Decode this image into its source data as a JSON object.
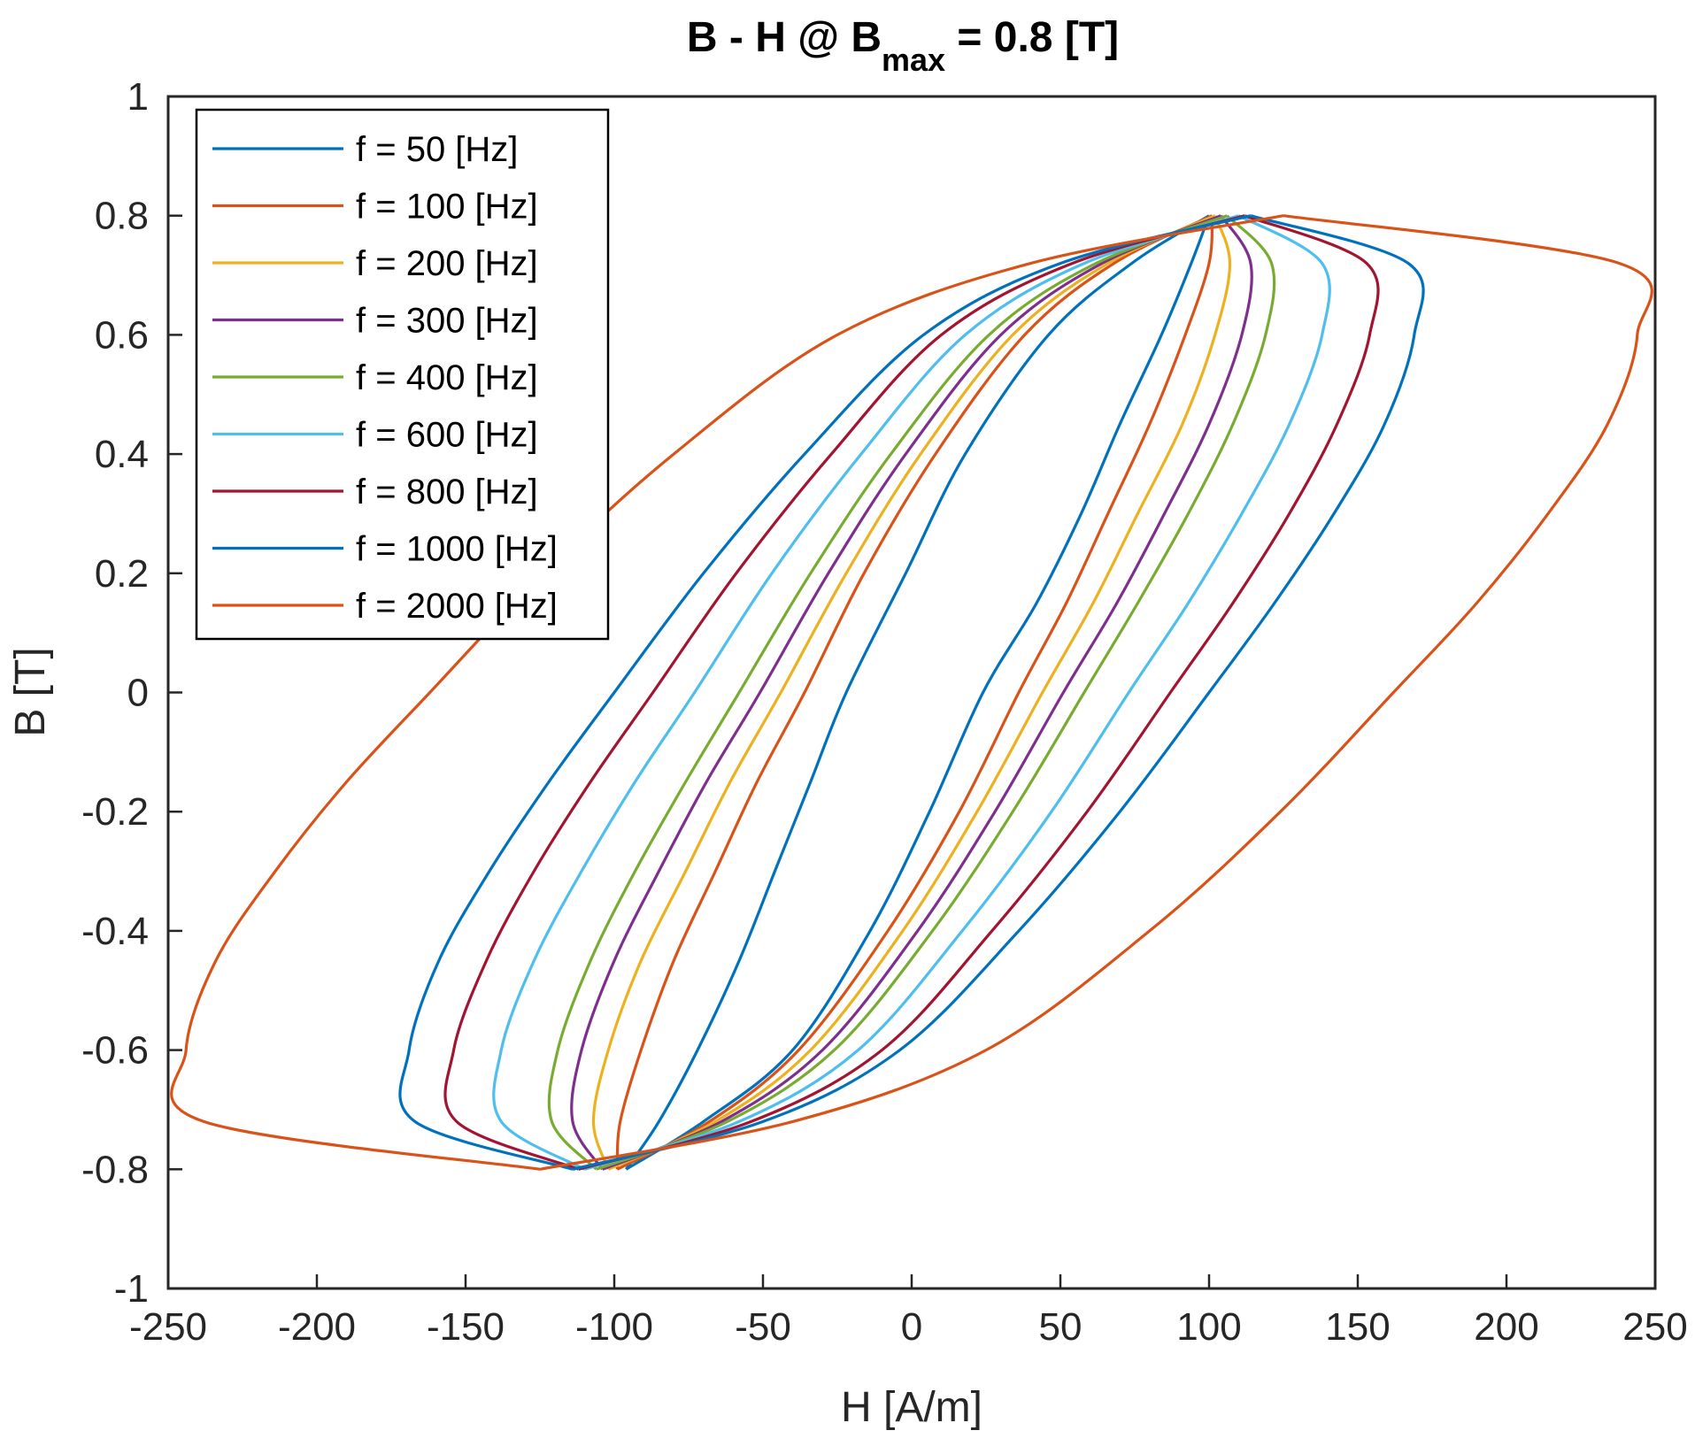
{
  "chart_data": {
    "type": "line",
    "title": {
      "prefix": "B - H @ B",
      "subscript": "max",
      "suffix": " = 0.8 [T]"
    },
    "xlabel": "H [A/m]",
    "ylabel": "B [T]",
    "xlim": [
      -250,
      250
    ],
    "ylim": [
      -1,
      1
    ],
    "xticks": [
      {
        "value": -250,
        "label": "-250"
      },
      {
        "value": -200,
        "label": "-200"
      },
      {
        "value": -150,
        "label": "-150"
      },
      {
        "value": -100,
        "label": "-100"
      },
      {
        "value": -50,
        "label": "-50"
      },
      {
        "value": 0,
        "label": "0"
      },
      {
        "value": 50,
        "label": "50"
      },
      {
        "value": 100,
        "label": "100"
      },
      {
        "value": 150,
        "label": "150"
      },
      {
        "value": 200,
        "label": "200"
      },
      {
        "value": 250,
        "label": "250"
      }
    ],
    "yticks": [
      {
        "value": -1,
        "label": "-1"
      },
      {
        "value": -0.8,
        "label": "-0.8"
      },
      {
        "value": -0.6,
        "label": "-0.6"
      },
      {
        "value": -0.4,
        "label": "-0.4"
      },
      {
        "value": -0.2,
        "label": "-0.2"
      },
      {
        "value": 0,
        "label": "0"
      },
      {
        "value": 0.2,
        "label": "0.2"
      },
      {
        "value": 0.4,
        "label": "0.4"
      },
      {
        "value": 0.6,
        "label": "0.6"
      },
      {
        "value": 0.8,
        "label": "0.8"
      },
      {
        "value": 1,
        "label": "1"
      }
    ],
    "grid": false,
    "legend_position": "top-left",
    "series": [
      {
        "name": "f = 50 [Hz]",
        "color": "#0072BD",
        "ascending": [
          [
            -96,
            -0.8
          ],
          [
            -85,
            -0.72
          ],
          [
            -72,
            -0.6
          ],
          [
            -58,
            -0.45
          ],
          [
            -46,
            -0.3
          ],
          [
            -34,
            -0.15
          ],
          [
            -22,
            0.0
          ],
          [
            -2,
            0.2
          ],
          [
            18,
            0.4
          ],
          [
            46,
            0.6
          ],
          [
            74,
            0.72
          ],
          [
            100,
            0.8
          ]
        ],
        "descending": [
          [
            100,
            0.8
          ],
          [
            94,
            0.72
          ],
          [
            84,
            0.6
          ],
          [
            70,
            0.45
          ],
          [
            57,
            0.3
          ],
          [
            42,
            0.15
          ],
          [
            24,
            0.0
          ],
          [
            6,
            -0.2
          ],
          [
            -14,
            -0.4
          ],
          [
            -40,
            -0.6
          ],
          [
            -70,
            -0.72
          ],
          [
            -96,
            -0.8
          ]
        ]
      },
      {
        "name": "f = 100 [Hz]",
        "color": "#D95319",
        "ascending": [
          [
            -99,
            -0.8
          ],
          [
            -98,
            -0.72
          ],
          [
            -91,
            -0.6
          ],
          [
            -80,
            -0.45
          ],
          [
            -66,
            -0.3
          ],
          [
            -52,
            -0.15
          ],
          [
            -36,
            0.0
          ],
          [
            -16,
            0.2
          ],
          [
            8,
            0.4
          ],
          [
            38,
            0.6
          ],
          [
            68,
            0.72
          ],
          [
            101,
            0.8
          ]
        ],
        "descending": [
          [
            101,
            0.8
          ],
          [
            100,
            0.72
          ],
          [
            92,
            0.6
          ],
          [
            80,
            0.45
          ],
          [
            66,
            0.3
          ],
          [
            52,
            0.15
          ],
          [
            36,
            0.0
          ],
          [
            16,
            -0.2
          ],
          [
            -8,
            -0.4
          ],
          [
            -38,
            -0.6
          ],
          [
            -68,
            -0.72
          ],
          [
            -99,
            -0.8
          ]
        ]
      },
      {
        "name": "f = 200 [Hz]",
        "color": "#EDB120",
        "ascending": [
          [
            -102,
            -0.8
          ],
          [
            -107,
            -0.72
          ],
          [
            -102,
            -0.6
          ],
          [
            -91,
            -0.45
          ],
          [
            -76,
            -0.3
          ],
          [
            -61,
            -0.15
          ],
          [
            -44,
            0.0
          ],
          [
            -22,
            0.2
          ],
          [
            3,
            0.4
          ],
          [
            34,
            0.6
          ],
          [
            66,
            0.72
          ],
          [
            102,
            0.8
          ]
        ],
        "descending": [
          [
            102,
            0.8
          ],
          [
            107,
            0.72
          ],
          [
            102,
            0.6
          ],
          [
            91,
            0.45
          ],
          [
            76,
            0.3
          ],
          [
            61,
            0.15
          ],
          [
            44,
            0.0
          ],
          [
            22,
            -0.2
          ],
          [
            -3,
            -0.4
          ],
          [
            -34,
            -0.6
          ],
          [
            -66,
            -0.72
          ],
          [
            -102,
            -0.8
          ]
        ]
      },
      {
        "name": "f = 300 [Hz]",
        "color": "#7E2F8E",
        "ascending": [
          [
            -104,
            -0.8
          ],
          [
            -114,
            -0.72
          ],
          [
            -111,
            -0.6
          ],
          [
            -100,
            -0.45
          ],
          [
            -85,
            -0.3
          ],
          [
            -69,
            -0.15
          ],
          [
            -51,
            0.0
          ],
          [
            -28,
            0.2
          ],
          [
            -2,
            0.4
          ],
          [
            30,
            0.6
          ],
          [
            64,
            0.72
          ],
          [
            104,
            0.8
          ]
        ],
        "descending": [
          [
            104,
            0.8
          ],
          [
            114,
            0.72
          ],
          [
            111,
            0.6
          ],
          [
            100,
            0.45
          ],
          [
            85,
            0.3
          ],
          [
            69,
            0.15
          ],
          [
            51,
            0.0
          ],
          [
            28,
            -0.2
          ],
          [
            2,
            -0.4
          ],
          [
            -30,
            -0.6
          ],
          [
            -64,
            -0.72
          ],
          [
            -104,
            -0.8
          ]
        ]
      },
      {
        "name": "f = 400 [Hz]",
        "color": "#77AC30",
        "ascending": [
          [
            -106,
            -0.8
          ],
          [
            -121,
            -0.72
          ],
          [
            -119,
            -0.6
          ],
          [
            -108,
            -0.45
          ],
          [
            -93,
            -0.3
          ],
          [
            -76,
            -0.15
          ],
          [
            -58,
            0.0
          ],
          [
            -34,
            0.2
          ],
          [
            -7,
            0.4
          ],
          [
            26,
            0.6
          ],
          [
            62,
            0.72
          ],
          [
            106,
            0.8
          ]
        ],
        "descending": [
          [
            106,
            0.8
          ],
          [
            121,
            0.72
          ],
          [
            119,
            0.6
          ],
          [
            108,
            0.45
          ],
          [
            93,
            0.3
          ],
          [
            76,
            0.15
          ],
          [
            58,
            0.0
          ],
          [
            34,
            -0.2
          ],
          [
            7,
            -0.4
          ],
          [
            -26,
            -0.6
          ],
          [
            -62,
            -0.72
          ],
          [
            -106,
            -0.8
          ]
        ]
      },
      {
        "name": "f = 600 [Hz]",
        "color": "#4DBEEE",
        "ascending": [
          [
            -110,
            -0.8
          ],
          [
            -138,
            -0.72
          ],
          [
            -138,
            -0.6
          ],
          [
            -127,
            -0.45
          ],
          [
            -111,
            -0.3
          ],
          [
            -93,
            -0.15
          ],
          [
            -73,
            0.0
          ],
          [
            -47,
            0.2
          ],
          [
            -17,
            0.4
          ],
          [
            18,
            0.6
          ],
          [
            58,
            0.72
          ],
          [
            110,
            0.8
          ]
        ],
        "descending": [
          [
            110,
            0.8
          ],
          [
            138,
            0.72
          ],
          [
            138,
            0.6
          ],
          [
            127,
            0.45
          ],
          [
            111,
            0.3
          ],
          [
            93,
            0.15
          ],
          [
            73,
            0.0
          ],
          [
            47,
            -0.2
          ],
          [
            17,
            -0.4
          ],
          [
            -18,
            -0.6
          ],
          [
            -58,
            -0.72
          ],
          [
            -110,
            -0.8
          ]
        ]
      },
      {
        "name": "f = 800 [Hz]",
        "color": "#A2142F",
        "ascending": [
          [
            -112,
            -0.8
          ],
          [
            -153,
            -0.72
          ],
          [
            -154,
            -0.6
          ],
          [
            -143,
            -0.45
          ],
          [
            -127,
            -0.3
          ],
          [
            -108,
            -0.15
          ],
          [
            -87,
            0.0
          ],
          [
            -59,
            0.2
          ],
          [
            -27,
            0.4
          ],
          [
            10,
            0.6
          ],
          [
            54,
            0.72
          ],
          [
            112,
            0.8
          ]
        ],
        "descending": [
          [
            112,
            0.8
          ],
          [
            153,
            0.72
          ],
          [
            154,
            0.6
          ],
          [
            143,
            0.45
          ],
          [
            127,
            0.3
          ],
          [
            108,
            0.15
          ],
          [
            87,
            0.0
          ],
          [
            59,
            -0.2
          ],
          [
            27,
            -0.4
          ],
          [
            -10,
            -0.6
          ],
          [
            -54,
            -0.72
          ],
          [
            -112,
            -0.8
          ]
        ]
      },
      {
        "name": "f = 1000 [Hz]",
        "color": "#0072BD",
        "ascending": [
          [
            -114,
            -0.8
          ],
          [
            -167,
            -0.72
          ],
          [
            -169,
            -0.6
          ],
          [
            -159,
            -0.45
          ],
          [
            -142,
            -0.3
          ],
          [
            -122,
            -0.15
          ],
          [
            -100,
            0.0
          ],
          [
            -70,
            0.2
          ],
          [
            -36,
            0.4
          ],
          [
            4,
            0.6
          ],
          [
            50,
            0.72
          ],
          [
            114,
            0.8
          ]
        ],
        "descending": [
          [
            114,
            0.8
          ],
          [
            167,
            0.72
          ],
          [
            169,
            0.6
          ],
          [
            159,
            0.45
          ],
          [
            142,
            0.3
          ],
          [
            122,
            0.15
          ],
          [
            100,
            0.0
          ],
          [
            70,
            -0.2
          ],
          [
            36,
            -0.4
          ],
          [
            -4,
            -0.6
          ],
          [
            -50,
            -0.72
          ],
          [
            -114,
            -0.8
          ]
        ]
      },
      {
        "name": "f = 2000 [Hz]",
        "color": "#D95319",
        "ascending": [
          [
            -125,
            -0.8
          ],
          [
            -238,
            -0.72
          ],
          [
            -244,
            -0.6
          ],
          [
            -234,
            -0.45
          ],
          [
            -214,
            -0.3
          ],
          [
            -190,
            -0.15
          ],
          [
            -162,
            0.0
          ],
          [
            -124,
            0.2
          ],
          [
            -80,
            0.4
          ],
          [
            -25,
            0.6
          ],
          [
            40,
            0.72
          ],
          [
            125,
            0.8
          ]
        ],
        "descending": [
          [
            125,
            0.8
          ],
          [
            238,
            0.72
          ],
          [
            244,
            0.6
          ],
          [
            234,
            0.45
          ],
          [
            214,
            0.3
          ],
          [
            190,
            0.15
          ],
          [
            162,
            0.0
          ],
          [
            124,
            -0.2
          ],
          [
            80,
            -0.4
          ],
          [
            25,
            -0.6
          ],
          [
            -40,
            -0.72
          ],
          [
            -125,
            -0.8
          ]
        ]
      }
    ]
  }
}
